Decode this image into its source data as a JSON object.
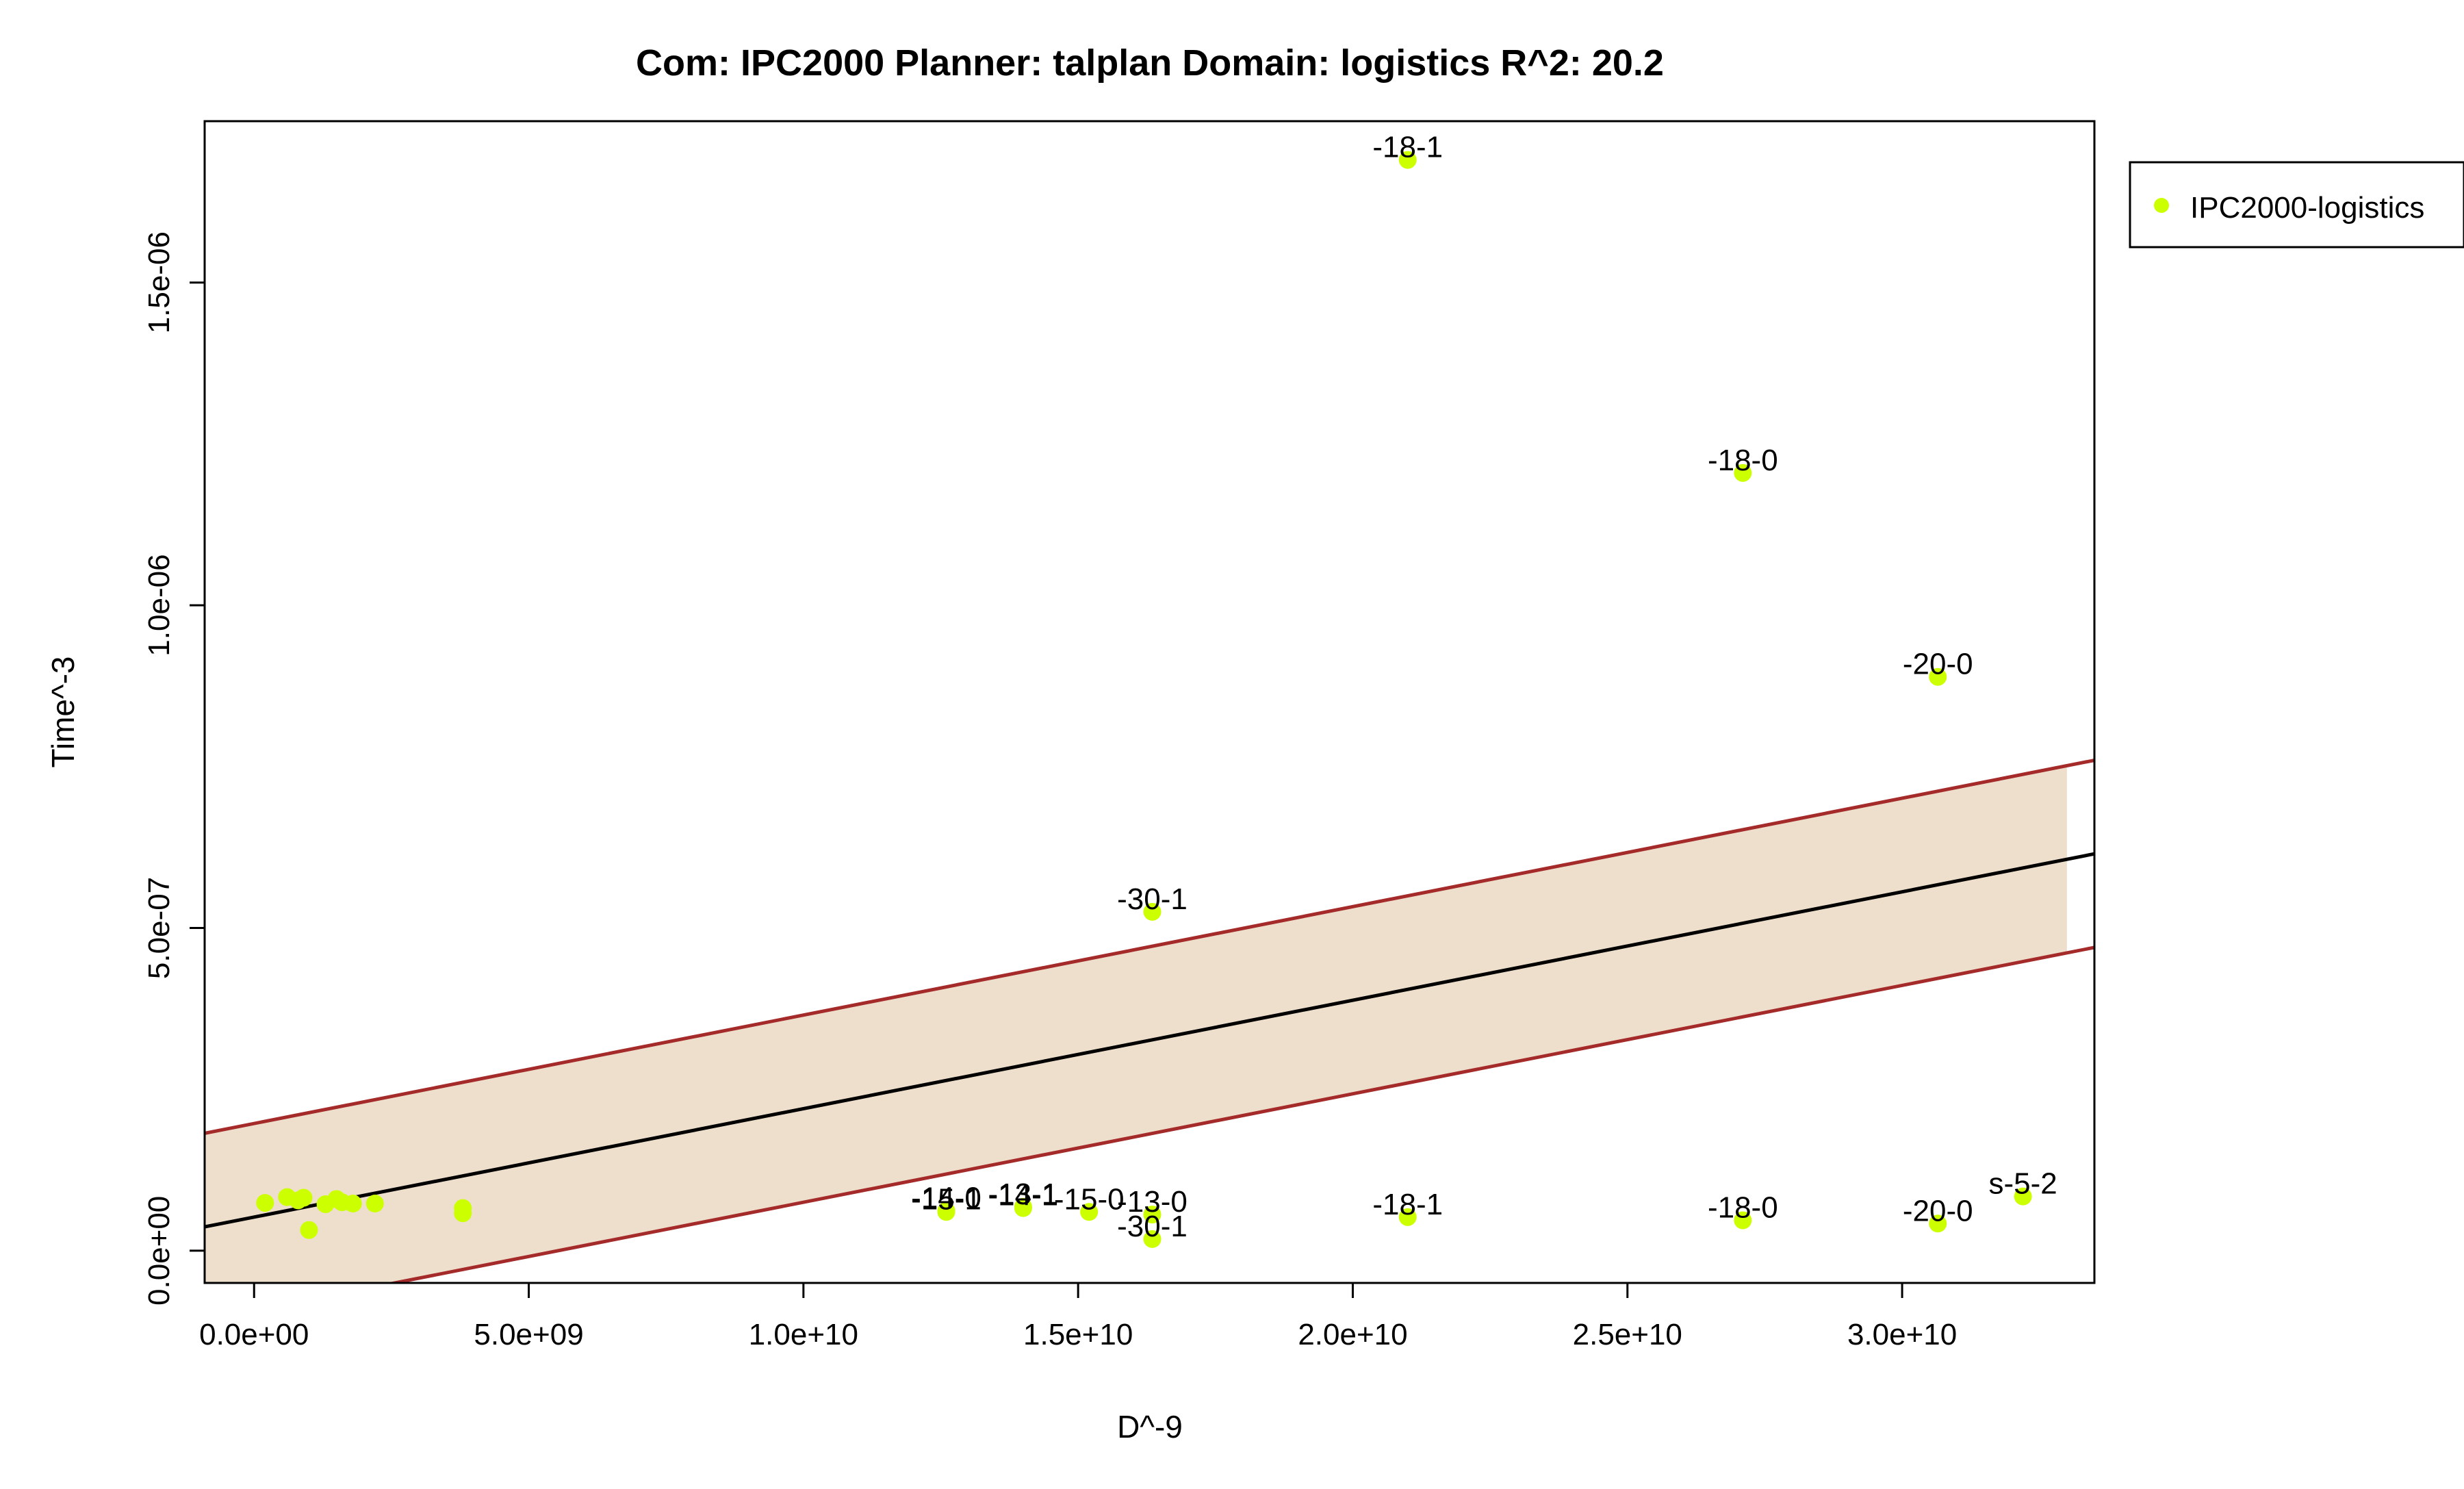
{
  "chart_data": {
    "type": "scatter",
    "title": "Com: IPC2000 Planner: talplan Domain: logistics R^2: 20.2",
    "xlabel": "D^-9",
    "ylabel": "Time^-3",
    "xlim": [
      -900000000.0,
      33500000000.0
    ],
    "ylim": [
      -5e-08,
      1.75e-06
    ],
    "x_ticks": [
      0,
      5000000000.0,
      10000000000.0,
      15000000000.0,
      20000000000.0,
      25000000000.0,
      30000000000.0
    ],
    "x_tick_labels": [
      "0.0e+00",
      "5.0e+09",
      "1.0e+10",
      "1.5e+10",
      "2.0e+10",
      "2.5e+10",
      "3.0e+10"
    ],
    "y_ticks": [
      0,
      5e-07,
      1e-06,
      1.5e-06
    ],
    "y_tick_labels": [
      "0.0e+00",
      "5.0e-07",
      "1.0e-06",
      "1.5e-06"
    ],
    "grid": false,
    "legend_position": "top-right-outside",
    "colors": {
      "points": "#ccff00",
      "fit_line": "#000000",
      "band_lines": "#a52a2a",
      "band_fill": "#eddfcb"
    },
    "fit": {
      "intercept": 5.2e-08,
      "slope": 1.68e-17,
      "band_halfwidth": 1.45e-07,
      "band_x_range": [
        -900000000.0,
        33000000000.0
      ]
    },
    "series": [
      {
        "name": "IPC2000-logistics",
        "points": [
          {
            "x": 200000000.0,
            "y": 7.4e-08,
            "label": ""
          },
          {
            "x": 600000000.0,
            "y": 8.3e-08,
            "label": ""
          },
          {
            "x": 800000000.0,
            "y": 7.8e-08,
            "label": ""
          },
          {
            "x": 900000000.0,
            "y": 8.2e-08,
            "label": ""
          },
          {
            "x": 1000000000.0,
            "y": 3.2e-08,
            "label": ""
          },
          {
            "x": 1300000000.0,
            "y": 7.2e-08,
            "label": ""
          },
          {
            "x": 1500000000.0,
            "y": 8e-08,
            "label": ""
          },
          {
            "x": 1600000000.0,
            "y": 7.5e-08,
            "label": ""
          },
          {
            "x": 1800000000.0,
            "y": 7.3e-08,
            "label": ""
          },
          {
            "x": 2200000000.0,
            "y": 7.3e-08,
            "label": ""
          },
          {
            "x": 3800000000.0,
            "y": 6.6e-08,
            "label": ""
          },
          {
            "x": 3800000000.0,
            "y": 5.8e-08,
            "label": ""
          },
          {
            "x": 12600000000.0,
            "y": 6e-08,
            "label": "-15-1"
          },
          {
            "x": 12600000000.0,
            "y": 6.2e-08,
            "label": "-14-0"
          },
          {
            "x": 14000000000.0,
            "y": 6.6e-08,
            "label": "-14-1"
          },
          {
            "x": 14000000000.0,
            "y": 6.8e-08,
            "label": "-13-1"
          },
          {
            "x": 15200000000.0,
            "y": 6e-08,
            "label": "-15-0"
          },
          {
            "x": 16350000000.0,
            "y": 5.25e-07,
            "label": "-30-1"
          },
          {
            "x": 16350000000.0,
            "y": 5.6e-08,
            "label": "-13-0"
          },
          {
            "x": 16350000000.0,
            "y": 1.8e-08,
            "label": "-30-1"
          },
          {
            "x": 21000000000.0,
            "y": 1.69e-06,
            "label": "-18-1"
          },
          {
            "x": 21000000000.0,
            "y": 5.2e-08,
            "label": "-18-1"
          },
          {
            "x": 27100000000.0,
            "y": 1.205e-06,
            "label": "-18-0"
          },
          {
            "x": 27100000000.0,
            "y": 4.7e-08,
            "label": "-18-0"
          },
          {
            "x": 30650000000.0,
            "y": 8.89e-07,
            "label": "-20-0"
          },
          {
            "x": 30650000000.0,
            "y": 4.2e-08,
            "label": "-20-0"
          },
          {
            "x": 32200000000.0,
            "y": 8.4e-08,
            "label": "s-5-2"
          }
        ]
      }
    ]
  }
}
